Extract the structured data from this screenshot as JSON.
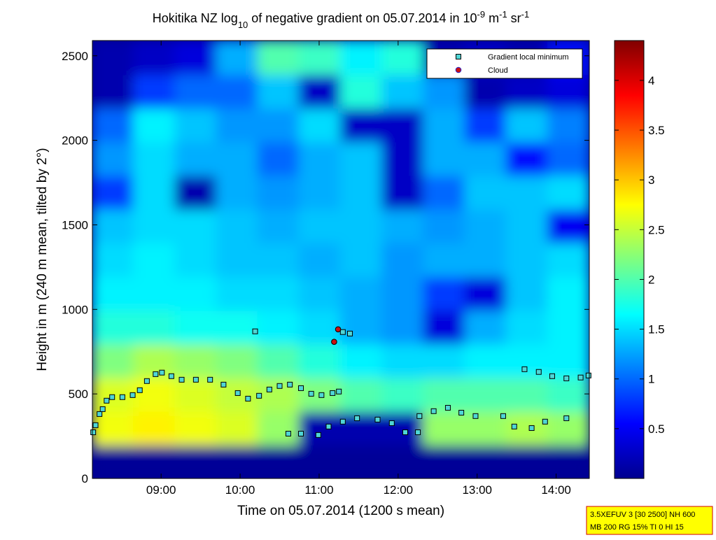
{
  "chart_data": {
    "type": "heatmap",
    "title": [
      {
        "text": "Hokitika NZ log"
      },
      {
        "text": "10",
        "shift": "sub"
      },
      {
        "text": " of negative gradient on 05.07.2014 in 10"
      },
      {
        "text": "-9",
        "shift": "super"
      },
      {
        "text": " m"
      },
      {
        "text": "-1",
        "shift": "super"
      },
      {
        "text": " sr"
      },
      {
        "text": "-1",
        "shift": "super"
      }
    ],
    "x_label": "Time on 05.07.2014 (1200 s mean)",
    "y_label": "Height in m (240 m mean, tilted by 2°)",
    "xlim": [
      8.13,
      14.42
    ],
    "ylim": [
      0,
      2590
    ],
    "xticks": [
      {
        "value": 9,
        "label": "09:00"
      },
      {
        "value": 10,
        "label": "10:00"
      },
      {
        "value": 11,
        "label": "11:00"
      },
      {
        "value": 12,
        "label": "12:00"
      },
      {
        "value": 13,
        "label": "13:00"
      },
      {
        "value": 14,
        "label": "14:00"
      }
    ],
    "yticks": [
      0,
      500,
      1000,
      1500,
      2000,
      2500
    ],
    "colormap": "jet",
    "clim": [
      0,
      4.4
    ],
    "cticks": [
      0.5,
      1,
      1.5,
      2,
      2.5,
      3,
      3.5,
      4
    ],
    "z": [
      [
        0.1,
        0.1,
        0.1,
        0.1,
        0.1,
        0.1,
        0.1,
        0.1,
        0.1,
        0.1,
        0.1,
        0.1
      ],
      [
        2.7,
        2.8,
        2.7,
        2.6,
        2.3,
        0.2,
        0.2,
        0.2,
        2.3,
        2.3,
        2.4,
        2.3
      ],
      [
        2.6,
        2.7,
        2.6,
        2.5,
        2.4,
        2.2,
        2.0,
        1.9,
        2.0,
        2.0,
        2.0,
        1.9
      ],
      [
        2.2,
        2.4,
        2.3,
        2.2,
        2.0,
        1.8,
        1.6,
        1.5,
        1.5,
        1.6,
        1.6,
        1.6
      ],
      [
        1.8,
        1.8,
        1.7,
        1.7,
        1.6,
        1.5,
        1.3,
        1.2,
        0.4,
        1.3,
        1.5,
        1.6
      ],
      [
        1.6,
        1.6,
        1.6,
        1.5,
        1.5,
        1.4,
        1.3,
        1.2,
        0.8,
        0.4,
        1.4,
        1.6
      ],
      [
        1.5,
        1.6,
        1.5,
        1.4,
        1.4,
        1.3,
        1.4,
        1.2,
        1.3,
        1.3,
        1.4,
        1.5
      ],
      [
        1.4,
        1.5,
        1.5,
        1.4,
        1.3,
        1.4,
        1.4,
        1.3,
        1.2,
        1.3,
        1.4,
        0.5
      ],
      [
        0.8,
        1.5,
        0.2,
        1.3,
        1.2,
        1.3,
        1.4,
        0.3,
        1.0,
        1.4,
        1.4,
        1.5
      ],
      [
        1.2,
        1.5,
        1.3,
        1.3,
        1.0,
        1.3,
        1.4,
        0.3,
        1.3,
        1.3,
        0.6,
        1.0
      ],
      [
        1.0,
        1.6,
        1.4,
        1.2,
        1.2,
        1.5,
        0.3,
        0.3,
        1.3,
        0.8,
        1.4,
        1.1
      ],
      [
        0.2,
        0.8,
        1.0,
        1.0,
        1.4,
        0.3,
        1.8,
        1.4,
        1.2,
        0.2,
        0.3,
        0.4
      ],
      [
        0.2,
        0.3,
        0.4,
        1.3,
        2.0,
        1.9,
        1.6,
        1.8,
        0.2,
        0.3,
        0.2,
        0.6
      ]
    ],
    "series": [
      {
        "name": "Gradient local minimum",
        "color": "#4fd6d6",
        "marker": "square",
        "x": [
          8.14,
          8.17,
          8.22,
          8.26,
          8.31,
          8.38,
          8.51,
          8.64,
          8.73,
          8.82,
          8.93,
          9.01,
          9.13,
          9.26,
          9.44,
          9.62,
          9.79,
          9.97,
          10.1,
          10.24,
          10.37,
          10.5,
          10.63,
          10.77,
          10.9,
          11.03,
          11.17,
          11.25,
          10.61,
          10.77,
          10.99,
          11.12,
          11.3,
          11.48,
          11.74,
          11.92,
          12.09,
          12.25,
          12.27,
          12.45,
          12.63,
          12.8,
          12.98,
          13.33,
          13.47,
          13.69,
          13.86,
          14.13,
          13.6,
          13.78,
          13.95,
          14.13,
          14.31,
          14.41,
          10.19,
          11.3,
          11.39
        ],
        "y": [
          273,
          315,
          381,
          410,
          460,
          481,
          481,
          493,
          522,
          576,
          617,
          626,
          605,
          584,
          584,
          584,
          555,
          505,
          472,
          489,
          526,
          547,
          555,
          534,
          501,
          493,
          505,
          514,
          265,
          265,
          257,
          307,
          336,
          356,
          348,
          327,
          273,
          273,
          369,
          398,
          418,
          389,
          369,
          369,
          307,
          298,
          336,
          356,
          646,
          630,
          605,
          592,
          597,
          609,
          870,
          866,
          857
        ]
      },
      {
        "name": "Cloud",
        "color": "#cc1111",
        "marker": "circle",
        "x": [
          11.24,
          11.19
        ],
        "y": [
          882,
          808
        ]
      }
    ],
    "legend": "upper right",
    "info_box": [
      "3.5XEFUV 3 [30 2500] NH 600",
      "MB 200 RG 15% TI 0 HI 15"
    ]
  }
}
